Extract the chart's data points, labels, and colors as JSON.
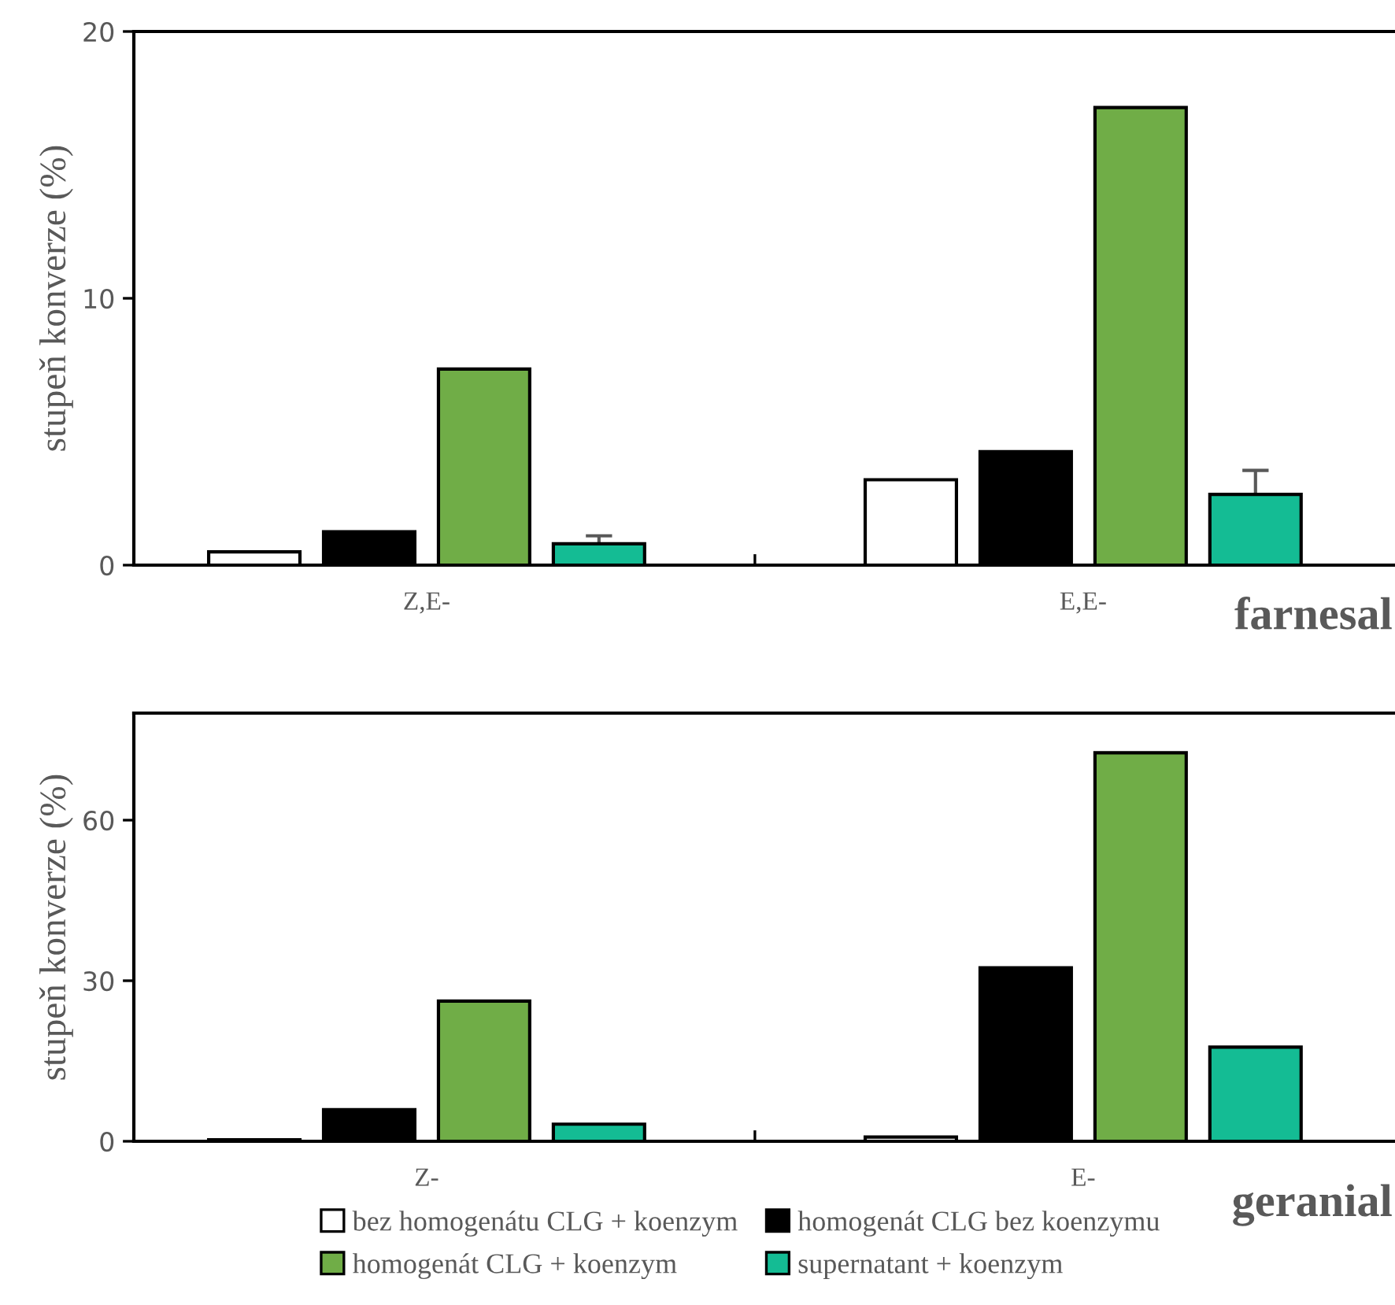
{
  "chart_data": [
    {
      "type": "bar",
      "ylabel": "stupeň konverze (%)",
      "categories": [
        "Z,E-",
        "E,E-"
      ],
      "ylim": [
        0,
        20
      ],
      "yticks": [
        0,
        10,
        20
      ],
      "grid": false,
      "legend": false,
      "annotations": [
        "farnesal"
      ],
      "series": [
        {
          "color": "#ffffff",
          "values": [
            0.5,
            3.2
          ]
        },
        {
          "color": "#000000",
          "values": [
            1.25,
            4.25
          ]
        },
        {
          "color": "#70ad47",
          "values": [
            7.35,
            17.15
          ]
        },
        {
          "color": "#14bc94",
          "values": [
            0.8,
            2.65
          ],
          "errors": [
            0.3,
            0.9
          ]
        }
      ]
    },
    {
      "type": "bar",
      "ylabel": "stupeň konverze (%)",
      "categories": [
        "Z-",
        "E-"
      ],
      "ylim": [
        0,
        80
      ],
      "yticks": [
        0,
        30,
        60
      ],
      "grid": false,
      "legend": "bottom",
      "annotations": [
        "geranial"
      ],
      "series": [
        {
          "name": "bez homogenátu CLG + koenzym",
          "color": "#ffffff",
          "values": [
            0.3,
            0.8
          ]
        },
        {
          "name": "homogenát CLG bez koenzymu",
          "color": "#000000",
          "values": [
            5.9,
            32.4
          ]
        },
        {
          "name": "homogenát CLG + koenzym",
          "color": "#70ad47",
          "values": [
            26.2,
            72.6
          ]
        },
        {
          "name": "supernatant + koenzym",
          "color": "#14bc94",
          "values": [
            3.2,
            17.6
          ]
        }
      ]
    }
  ]
}
